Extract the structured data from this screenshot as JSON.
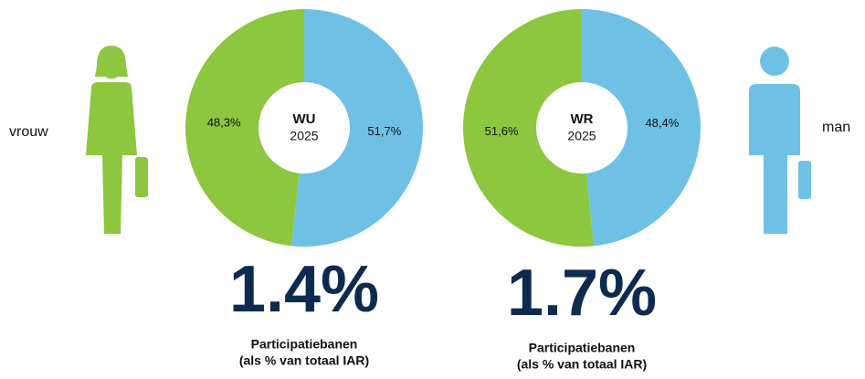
{
  "legend": [
    {
      "name": "vrouw",
      "color": "#8dc63f"
    },
    {
      "name": "man",
      "color": "#6ec1e4"
    }
  ],
  "chart_data": [
    {
      "type": "pie",
      "title": "WU",
      "subtitle": "2025",
      "values": [
        48.3,
        51.7
      ],
      "value_labels": [
        "48,3%",
        "51,7%"
      ],
      "colors": [
        "#8dc63f",
        "#6ec1e4"
      ],
      "annotations": [
        "1.4%",
        "Participatiebanen",
        "(als % van totaal IAR)"
      ]
    },
    {
      "type": "pie",
      "title": "WR",
      "subtitle": "2025",
      "values": [
        51.6,
        48.4
      ],
      "value_labels": [
        "51,6%",
        "48,4%"
      ],
      "colors": [
        "#8dc63f",
        "#6ec1e4"
      ],
      "annotations": [
        "1.7%",
        "Participatiebanen",
        "(als % van totaal IAR)"
      ]
    }
  ]
}
